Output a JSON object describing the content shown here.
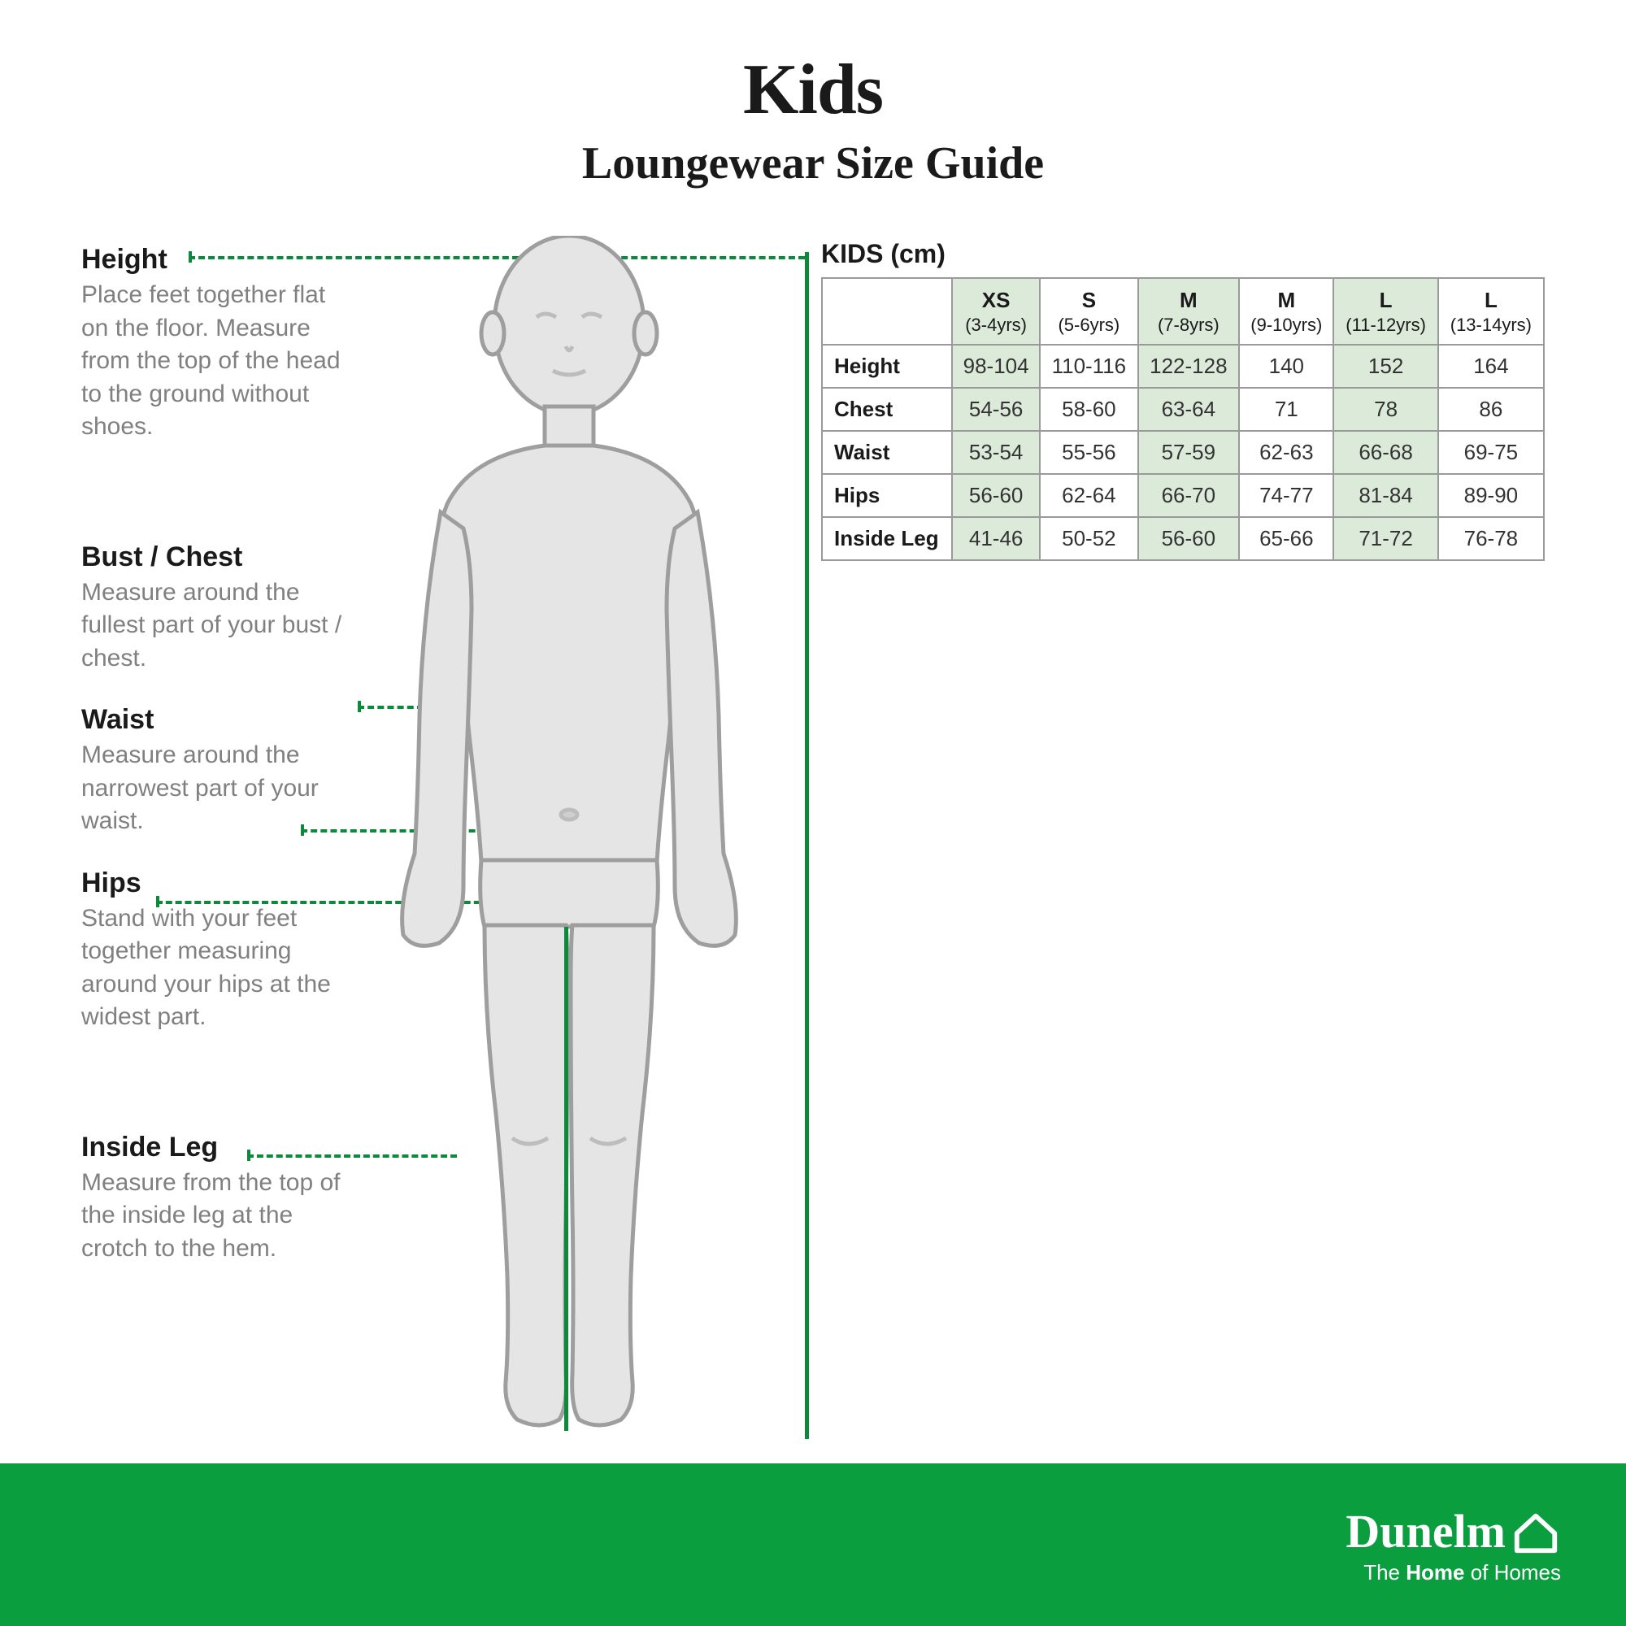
{
  "colors": {
    "accent_green": "#0a8a3a",
    "footer_green": "#0a9e3f",
    "highlight_bg": "#dcead9",
    "body_fill": "#e5e5e5",
    "body_stroke": "#9e9e9e",
    "text": "#1a1a1a",
    "muted": "#808080",
    "border": "#9a9a9a"
  },
  "header": {
    "title": "Kids",
    "subtitle": "Loungewear Size Guide"
  },
  "measurements": [
    {
      "key": "height",
      "title": "Height",
      "desc": "Place feet together flat on the floor. Measure from the top of the head to the ground without shoes."
    },
    {
      "key": "chest",
      "title": "Bust / Chest",
      "desc": "Measure around the fullest part of your bust / chest."
    },
    {
      "key": "waist",
      "title": "Waist",
      "desc": "Measure around the narrowest part of your waist."
    },
    {
      "key": "hips",
      "title": "Hips",
      "desc": "Stand with your feet together measuring around your hips at the widest part."
    },
    {
      "key": "inside",
      "title": "Inside Leg",
      "desc": "Measure from the top of the inside leg at the crotch to the hem."
    }
  ],
  "table": {
    "title": "KIDS (cm)",
    "highlight_cols": [
      0,
      2,
      4
    ],
    "columns": [
      {
        "size": "XS",
        "age": "(3-4yrs)"
      },
      {
        "size": "S",
        "age": "(5-6yrs)"
      },
      {
        "size": "M",
        "age": "(7-8yrs)"
      },
      {
        "size": "M",
        "age": "(9-10yrs)"
      },
      {
        "size": "L",
        "age": "(11-12yrs)"
      },
      {
        "size": "L",
        "age": "(13-14yrs)"
      }
    ],
    "rows": [
      {
        "label": "Height",
        "values": [
          "98-104",
          "110-116",
          "122-128",
          "140",
          "152",
          "164"
        ]
      },
      {
        "label": "Chest",
        "values": [
          "54-56",
          "58-60",
          "63-64",
          "71",
          "78",
          "86"
        ]
      },
      {
        "label": "Waist",
        "values": [
          "53-54",
          "55-56",
          "57-59",
          "62-63",
          "66-68",
          "69-75"
        ]
      },
      {
        "label": "Hips",
        "values": [
          "56-60",
          "62-64",
          "66-70",
          "74-77",
          "81-84",
          "89-90"
        ]
      },
      {
        "label": "Inside Leg",
        "values": [
          "41-46",
          "50-52",
          "56-60",
          "65-66",
          "71-72",
          "76-78"
        ]
      }
    ]
  },
  "footer": {
    "brand": "Dunelm",
    "tagline_pre": "The ",
    "tagline_bold": "Home",
    "tagline_post": " of Homes"
  }
}
